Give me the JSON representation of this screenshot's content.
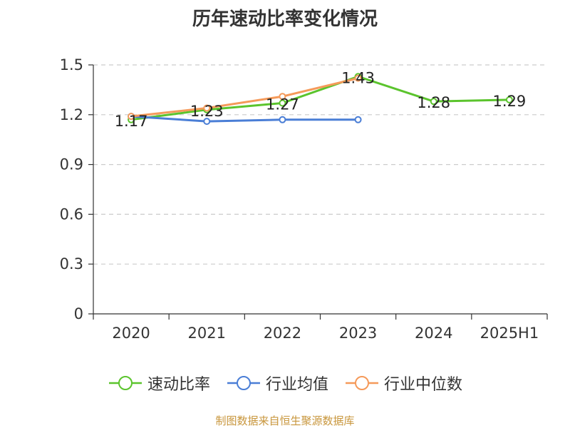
{
  "chart_data": {
    "type": "line",
    "title": "历年速动比率变化情况",
    "categories": [
      "2020",
      "2021",
      "2022",
      "2023",
      "2024",
      "2025H1"
    ],
    "ylim": [
      0,
      1.5
    ],
    "yticks": [
      "0",
      "0.3",
      "0.6",
      "0.9",
      "1.2",
      "1.5"
    ],
    "ytick_values": [
      0,
      0.3,
      0.6,
      0.9,
      1.2,
      1.5
    ],
    "grid": true,
    "legend_position": "bottom",
    "series": [
      {
        "name": "速动比率",
        "color": "#5bc42d",
        "values": [
          1.17,
          1.23,
          1.27,
          1.43,
          1.28,
          1.29
        ],
        "labels": [
          "1.17",
          "1.23",
          "1.27",
          "1.43",
          "1.28",
          "1.29"
        ],
        "show_labels": true
      },
      {
        "name": "行业均值",
        "color": "#4a7ed6",
        "values": [
          1.19,
          1.16,
          1.17,
          1.17,
          null,
          null
        ],
        "show_labels": false
      },
      {
        "name": "行业中位数",
        "color": "#f59a5a",
        "values": [
          1.19,
          1.24,
          1.31,
          1.42,
          null,
          null
        ],
        "show_labels": false
      }
    ]
  },
  "source": "制图数据来自恒生聚源数据库"
}
